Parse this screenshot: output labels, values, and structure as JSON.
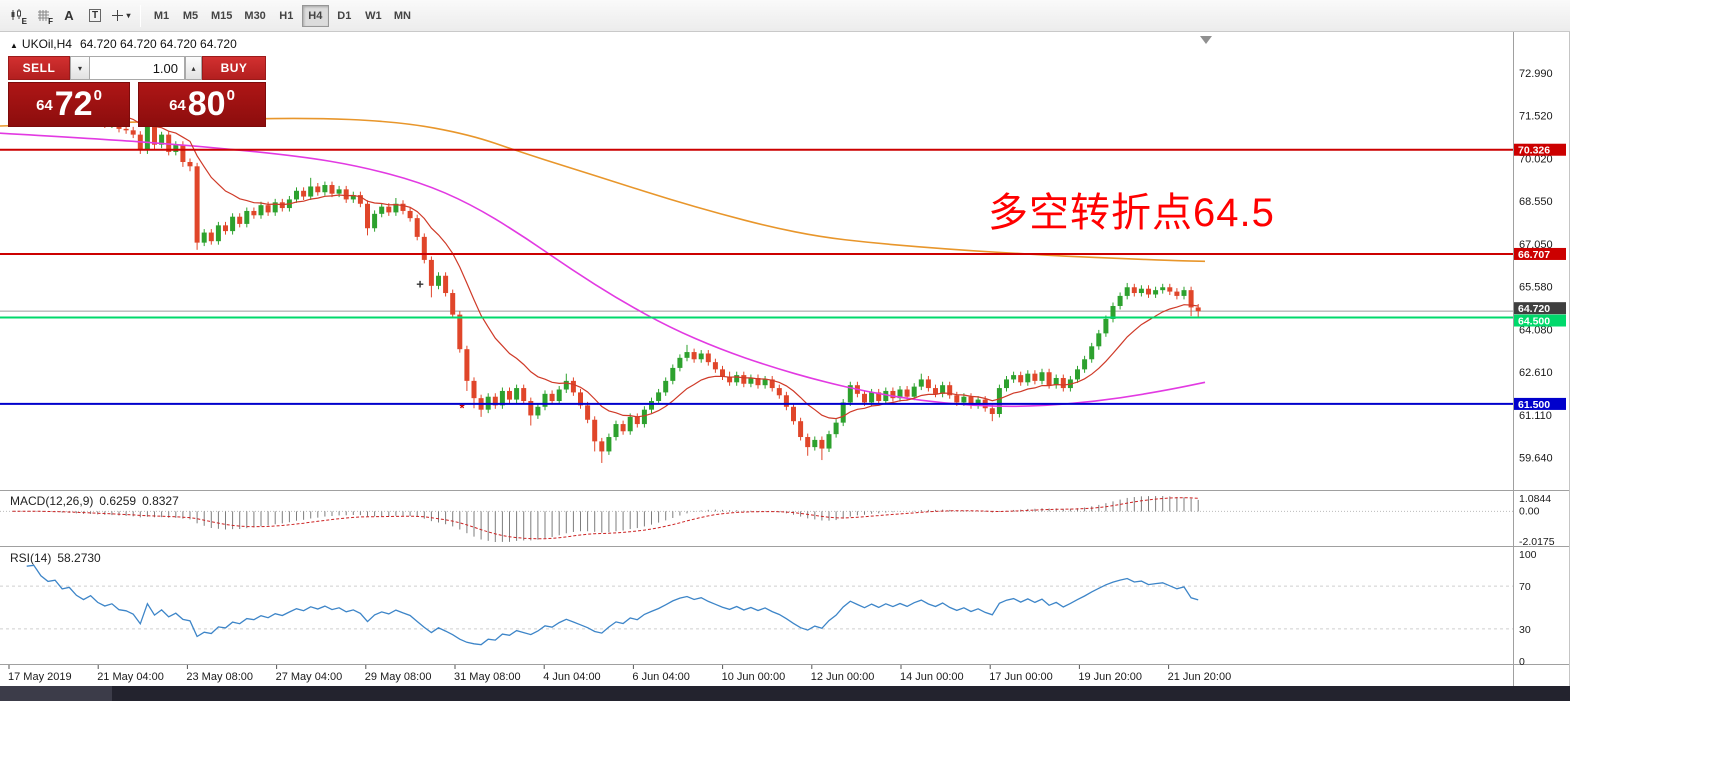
{
  "icons": {
    "collapse": "▲",
    "caret_down": "▾",
    "caret_up": "▴"
  },
  "toolbar": {
    "icon_buttons": [
      {
        "sub": "E"
      },
      {
        "sub": "F"
      },
      {
        "label": "A"
      },
      {
        "label": "T"
      },
      {
        "caret": "▾"
      }
    ],
    "timeframes": [
      "M1",
      "M5",
      "M15",
      "M30",
      "H1",
      "H4",
      "D1",
      "W1",
      "MN"
    ],
    "active_timeframe": "H4"
  },
  "symbol_header": {
    "symbol": "UKOil,H4",
    "ohlc_text": "64.720 64.720 64.720 64.720"
  },
  "trade_panel": {
    "sell_label": "SELL",
    "buy_label": "BUY",
    "volume": "1.00",
    "sell_price": {
      "prefix": "64",
      "big": "72",
      "sup": "0"
    },
    "buy_price": {
      "prefix": "64",
      "big": "80",
      "sup": "0"
    }
  },
  "annotation": {
    "text": "多空转折点64.5",
    "color": "#ff0000"
  },
  "price_axis": {
    "ticks": [
      "72.990",
      "71.520",
      "70.020",
      "68.550",
      "67.050",
      "65.580",
      "64.080",
      "62.610",
      "61.110",
      "59.640"
    ],
    "current": {
      "label": "64.720",
      "price": 64.72,
      "tag_color": "#3f3f3f"
    }
  },
  "time_axis": {
    "labels": [
      "17 May 2019",
      "21 May 04:00",
      "23 May 08:00",
      "27 May 04:00",
      "29 May 08:00",
      "31 May 08:00",
      "4 Jun 04:00",
      "6 Jun 04:00",
      "10 Jun 00:00",
      "12 Jun 00:00",
      "14 Jun 00:00",
      "17 Jun 00:00",
      "19 Jun 20:00",
      "21 Jun 20:00"
    ]
  },
  "indicators": {
    "macd": {
      "title": "MACD(12,26,9)",
      "value_main": "0.6259",
      "value_signal": "0.8327",
      "axis_labels": {
        "max": "1.0844",
        "zero": "0.00",
        "min": "-2.0175"
      }
    },
    "rsi": {
      "title": "RSI(14)",
      "value": "58.2730",
      "axis_labels": [
        "100",
        "70",
        "30",
        "0"
      ]
    }
  },
  "chart_data": {
    "type": "candlestick",
    "title": "UKOil,H4",
    "symbol": "UKOil",
    "timeframe": "H4",
    "y_range": [
      58.5,
      74.4
    ],
    "style": {
      "up_color": "#2da12e",
      "down_color": "#e0462a",
      "ma_slow_color": "#e8962b",
      "ma_mid_color": "#e23ae2",
      "ma_fast_color": "#cf3a28",
      "macd_hist_color": "#7d7d7d",
      "macd_signal_color": "#cc2222",
      "rsi_color": "#3d85c8"
    },
    "candles": [
      [
        72.05,
        72.32,
        71.93,
        72.2
      ],
      [
        72.2,
        72.47,
        72.08,
        72.35
      ],
      [
        72.35,
        72.47,
        71.98,
        72.1
      ],
      [
        72.1,
        72.37,
        71.98,
        72.25
      ],
      [
        72.25,
        72.37,
        71.88,
        72.0
      ],
      [
        72.0,
        72.12,
        71.73,
        71.85
      ],
      [
        71.85,
        72.07,
        71.73,
        71.95
      ],
      [
        71.95,
        72.07,
        71.58,
        71.7
      ],
      [
        71.7,
        71.92,
        71.58,
        71.8
      ],
      [
        71.8,
        71.92,
        71.43,
        71.55
      ],
      [
        71.55,
        71.67,
        71.28,
        71.4
      ],
      [
        71.4,
        71.72,
        71.28,
        71.6
      ],
      [
        71.6,
        71.72,
        71.23,
        71.35
      ],
      [
        71.35,
        71.47,
        71.08,
        71.2
      ],
      [
        71.2,
        71.42,
        71.08,
        71.3
      ],
      [
        71.3,
        71.42,
        70.93,
        71.05
      ],
      [
        71.05,
        71.22,
        70.88,
        71.0
      ],
      [
        71.0,
        71.12,
        70.73,
        70.85
      ],
      [
        70.85,
        70.97,
        70.18,
        70.3
      ],
      [
        70.3,
        71.45,
        70.18,
        71.3
      ],
      [
        71.3,
        71.42,
        70.33,
        70.5
      ],
      [
        70.5,
        70.95,
        70.38,
        70.85
      ],
      [
        70.85,
        70.97,
        70.13,
        70.25
      ],
      [
        70.25,
        70.62,
        70.13,
        70.5
      ],
      [
        70.5,
        70.62,
        69.73,
        69.9
      ],
      [
        69.9,
        70.02,
        69.58,
        69.75
      ],
      [
        69.75,
        69.87,
        66.85,
        67.1
      ],
      [
        67.1,
        67.57,
        66.98,
        67.45
      ],
      [
        67.45,
        67.57,
        67.03,
        67.15
      ],
      [
        67.15,
        67.82,
        67.03,
        67.7
      ],
      [
        67.7,
        67.82,
        67.38,
        67.5
      ],
      [
        67.5,
        68.12,
        67.38,
        68.0
      ],
      [
        68.0,
        68.12,
        67.63,
        67.75
      ],
      [
        67.75,
        68.32,
        67.63,
        68.2
      ],
      [
        68.2,
        68.32,
        67.93,
        68.05
      ],
      [
        68.05,
        68.52,
        67.93,
        68.4
      ],
      [
        68.4,
        68.52,
        68.03,
        68.15
      ],
      [
        68.15,
        68.62,
        68.03,
        68.5
      ],
      [
        68.5,
        68.62,
        68.18,
        68.3
      ],
      [
        68.3,
        68.72,
        68.18,
        68.6
      ],
      [
        68.6,
        69.02,
        68.48,
        68.9
      ],
      [
        68.9,
        69.02,
        68.58,
        68.7
      ],
      [
        68.7,
        69.35,
        68.58,
        69.05
      ],
      [
        69.05,
        69.17,
        68.73,
        68.85
      ],
      [
        68.85,
        69.22,
        68.73,
        69.1
      ],
      [
        69.1,
        69.22,
        68.68,
        68.8
      ],
      [
        68.8,
        69.07,
        68.68,
        68.95
      ],
      [
        68.95,
        69.07,
        68.48,
        68.6
      ],
      [
        68.6,
        68.87,
        68.48,
        68.75
      ],
      [
        68.75,
        68.87,
        68.33,
        68.45
      ],
      [
        68.45,
        68.57,
        67.35,
        67.6
      ],
      [
        67.6,
        68.22,
        67.48,
        68.1
      ],
      [
        68.1,
        68.47,
        67.98,
        68.35
      ],
      [
        68.35,
        68.47,
        68.03,
        68.15
      ],
      [
        68.15,
        68.65,
        68.03,
        68.45
      ],
      [
        68.45,
        68.57,
        68.08,
        68.2
      ],
      [
        68.2,
        68.32,
        67.83,
        67.95
      ],
      [
        67.95,
        68.07,
        67.18,
        67.3
      ],
      [
        67.3,
        67.42,
        66.38,
        66.5
      ],
      [
        66.5,
        66.62,
        65.2,
        65.6
      ],
      [
        65.6,
        66.07,
        65.48,
        65.95
      ],
      [
        65.95,
        66.07,
        65.23,
        65.35
      ],
      [
        65.35,
        65.47,
        64.48,
        64.6
      ],
      [
        64.6,
        64.72,
        63.28,
        63.4
      ],
      [
        63.4,
        63.52,
        61.95,
        62.3
      ],
      [
        62.3,
        62.42,
        61.35,
        61.7
      ],
      [
        61.7,
        61.82,
        61.05,
        61.3
      ],
      [
        61.3,
        61.87,
        61.18,
        61.75
      ],
      [
        61.75,
        61.87,
        61.33,
        61.45
      ],
      [
        61.45,
        62.07,
        61.33,
        61.95
      ],
      [
        61.95,
        62.07,
        61.53,
        61.65
      ],
      [
        61.65,
        62.17,
        61.53,
        62.05
      ],
      [
        62.05,
        62.17,
        61.48,
        61.6
      ],
      [
        61.6,
        61.72,
        60.75,
        61.1
      ],
      [
        61.1,
        61.52,
        60.98,
        61.4
      ],
      [
        61.4,
        61.97,
        61.28,
        61.85
      ],
      [
        61.85,
        61.97,
        61.48,
        61.6
      ],
      [
        61.6,
        62.12,
        61.48,
        62.0
      ],
      [
        62.0,
        62.55,
        61.88,
        62.3
      ],
      [
        62.3,
        62.42,
        61.78,
        61.9
      ],
      [
        61.9,
        62.02,
        61.33,
        61.45
      ],
      [
        61.45,
        61.57,
        60.83,
        60.95
      ],
      [
        60.95,
        61.07,
        59.85,
        60.2
      ],
      [
        60.2,
        60.32,
        59.45,
        59.85
      ],
      [
        59.85,
        60.47,
        59.73,
        60.35
      ],
      [
        60.35,
        60.92,
        60.23,
        60.8
      ],
      [
        60.8,
        60.92,
        60.43,
        60.55
      ],
      [
        60.55,
        61.17,
        60.43,
        61.05
      ],
      [
        61.05,
        61.17,
        60.68,
        60.8
      ],
      [
        60.8,
        61.42,
        60.68,
        61.3
      ],
      [
        61.3,
        61.72,
        61.18,
        61.6
      ],
      [
        61.6,
        62.02,
        61.48,
        61.9
      ],
      [
        61.9,
        62.42,
        61.78,
        62.3
      ],
      [
        62.3,
        62.87,
        62.18,
        62.75
      ],
      [
        62.75,
        63.22,
        62.63,
        63.1
      ],
      [
        63.1,
        63.55,
        62.98,
        63.3
      ],
      [
        63.3,
        63.42,
        62.93,
        63.05
      ],
      [
        63.05,
        63.37,
        62.93,
        63.25
      ],
      [
        63.25,
        63.37,
        62.83,
        62.95
      ],
      [
        62.95,
        63.07,
        62.58,
        62.7
      ],
      [
        62.7,
        62.82,
        62.33,
        62.45
      ],
      [
        62.45,
        62.62,
        62.13,
        62.25
      ],
      [
        62.25,
        62.62,
        62.13,
        62.5
      ],
      [
        62.5,
        62.62,
        62.08,
        62.2
      ],
      [
        62.2,
        62.52,
        62.08,
        62.4
      ],
      [
        62.4,
        62.52,
        62.03,
        62.15
      ],
      [
        62.15,
        62.47,
        62.03,
        62.35
      ],
      [
        62.35,
        62.47,
        61.93,
        62.05
      ],
      [
        62.05,
        62.17,
        61.68,
        61.8
      ],
      [
        61.8,
        61.92,
        61.28,
        61.4
      ],
      [
        61.4,
        61.52,
        60.78,
        60.9
      ],
      [
        60.9,
        61.02,
        60.23,
        60.35
      ],
      [
        60.35,
        60.47,
        59.7,
        60.0
      ],
      [
        60.0,
        60.37,
        59.88,
        60.25
      ],
      [
        60.25,
        60.37,
        59.55,
        59.95
      ],
      [
        59.95,
        60.57,
        59.83,
        60.45
      ],
      [
        60.45,
        60.97,
        60.33,
        60.85
      ],
      [
        60.85,
        61.67,
        60.73,
        61.55
      ],
      [
        61.55,
        62.27,
        61.43,
        62.15
      ],
      [
        62.15,
        62.27,
        61.73,
        61.85
      ],
      [
        61.85,
        61.97,
        61.43,
        61.55
      ],
      [
        61.55,
        62.02,
        61.43,
        61.9
      ],
      [
        61.9,
        62.02,
        61.48,
        61.6
      ],
      [
        61.6,
        62.07,
        61.48,
        61.95
      ],
      [
        61.95,
        62.07,
        61.58,
        61.7
      ],
      [
        61.7,
        62.12,
        61.58,
        62.0
      ],
      [
        62.0,
        62.12,
        61.63,
        61.75
      ],
      [
        61.75,
        62.22,
        61.63,
        62.1
      ],
      [
        62.1,
        62.55,
        61.98,
        62.35
      ],
      [
        62.35,
        62.47,
        61.93,
        62.05
      ],
      [
        62.05,
        62.17,
        61.73,
        61.85
      ],
      [
        61.85,
        62.27,
        61.73,
        62.15
      ],
      [
        62.15,
        62.27,
        61.68,
        61.8
      ],
      [
        61.8,
        61.92,
        61.43,
        61.55
      ],
      [
        61.55,
        61.87,
        61.43,
        61.75
      ],
      [
        61.75,
        61.87,
        61.33,
        61.45
      ],
      [
        61.45,
        61.77,
        61.33,
        61.65
      ],
      [
        61.65,
        61.77,
        61.23,
        61.35
      ],
      [
        61.35,
        61.47,
        60.9,
        61.15
      ],
      [
        61.15,
        62.17,
        61.03,
        62.05
      ],
      [
        62.05,
        62.47,
        61.93,
        62.35
      ],
      [
        62.35,
        62.62,
        62.23,
        62.5
      ],
      [
        62.5,
        62.62,
        62.13,
        62.25
      ],
      [
        62.25,
        62.67,
        62.13,
        62.55
      ],
      [
        62.55,
        62.67,
        62.18,
        62.3
      ],
      [
        62.3,
        62.72,
        62.18,
        62.6
      ],
      [
        62.6,
        62.72,
        62.03,
        62.15
      ],
      [
        62.15,
        62.52,
        62.03,
        62.4
      ],
      [
        62.4,
        62.52,
        61.93,
        62.05
      ],
      [
        62.05,
        62.47,
        61.93,
        62.35
      ],
      [
        62.35,
        62.82,
        62.23,
        62.7
      ],
      [
        62.7,
        63.17,
        62.58,
        63.05
      ],
      [
        63.05,
        63.62,
        62.93,
        63.5
      ],
      [
        63.5,
        64.07,
        63.38,
        63.95
      ],
      [
        63.95,
        64.57,
        63.83,
        64.45
      ],
      [
        64.45,
        65.02,
        64.33,
        64.9
      ],
      [
        64.9,
        65.37,
        64.78,
        65.25
      ],
      [
        65.25,
        65.7,
        65.13,
        65.55
      ],
      [
        65.55,
        65.67,
        65.23,
        65.35
      ],
      [
        65.35,
        65.62,
        65.23,
        65.5
      ],
      [
        65.5,
        65.62,
        65.18,
        65.3
      ],
      [
        65.3,
        65.57,
        65.18,
        65.45
      ],
      [
        65.45,
        65.67,
        65.33,
        65.55
      ],
      [
        65.55,
        65.67,
        65.28,
        65.4
      ],
      [
        65.4,
        65.52,
        65.13,
        65.25
      ],
      [
        65.25,
        65.57,
        65.13,
        65.45
      ],
      [
        65.45,
        65.57,
        64.55,
        64.85
      ],
      [
        64.85,
        64.97,
        64.48,
        64.72
      ]
    ],
    "overlays": {
      "hlines": [
        {
          "label": "70.326",
          "price": 70.326,
          "color": "#cc0000"
        },
        {
          "label": "66.707",
          "price": 66.707,
          "color": "#cc0000"
        },
        {
          "label": "64.500",
          "price": 64.5,
          "color": "#00d96b"
        },
        {
          "label": "61.500",
          "price": 61.5,
          "color": "#0000cc"
        }
      ],
      "ma_slow_orange_keypoints": [
        [
          0,
          71.15
        ],
        [
          150,
          71.3
        ],
        [
          300,
          71.45
        ],
        [
          400,
          71.3
        ],
        [
          470,
          70.85
        ],
        [
          520,
          70.25
        ],
        [
          570,
          69.7
        ],
        [
          620,
          69.15
        ],
        [
          670,
          68.6
        ],
        [
          720,
          68.1
        ],
        [
          770,
          67.65
        ],
        [
          820,
          67.3
        ],
        [
          870,
          67.1
        ],
        [
          920,
          66.95
        ],
        [
          970,
          66.82
        ],
        [
          1020,
          66.72
        ],
        [
          1070,
          66.62
        ],
        [
          1120,
          66.55
        ],
        [
          1170,
          66.48
        ],
        [
          1205,
          66.45
        ]
      ],
      "ma_mid_magenta_keypoints": [
        [
          0,
          70.9
        ],
        [
          100,
          70.7
        ],
        [
          200,
          70.45
        ],
        [
          300,
          70.1
        ],
        [
          360,
          69.75
        ],
        [
          420,
          69.2
        ],
        [
          470,
          68.45
        ],
        [
          520,
          67.4
        ],
        [
          570,
          66.2
        ],
        [
          620,
          65.1
        ],
        [
          670,
          64.15
        ],
        [
          720,
          63.4
        ],
        [
          770,
          62.8
        ],
        [
          820,
          62.3
        ],
        [
          870,
          61.9
        ],
        [
          920,
          61.62
        ],
        [
          970,
          61.45
        ],
        [
          1020,
          61.4
        ],
        [
          1070,
          61.5
        ],
        [
          1120,
          61.7
        ],
        [
          1170,
          62.0
        ],
        [
          1205,
          62.25
        ]
      ],
      "ma_fast_red": {
        "type": "ema",
        "period": 13,
        "source": "close"
      },
      "markers": [
        {
          "glyph": "+",
          "color": "#333333",
          "x": 420,
          "price": 65.5
        },
        {
          "glyph": "*",
          "color": "#cc0000",
          "x": 462,
          "price": 61.2
        }
      ]
    },
    "indicator_params": {
      "macd": {
        "fast": 12,
        "slow": 26,
        "signal": 9,
        "current_macd": 0.6259,
        "current_signal": 0.8327,
        "axis_max": 1.0844,
        "axis_min": -2.0175
      },
      "rsi": {
        "period": 14,
        "current": 58.273,
        "levels": [
          70,
          30
        ]
      }
    }
  }
}
